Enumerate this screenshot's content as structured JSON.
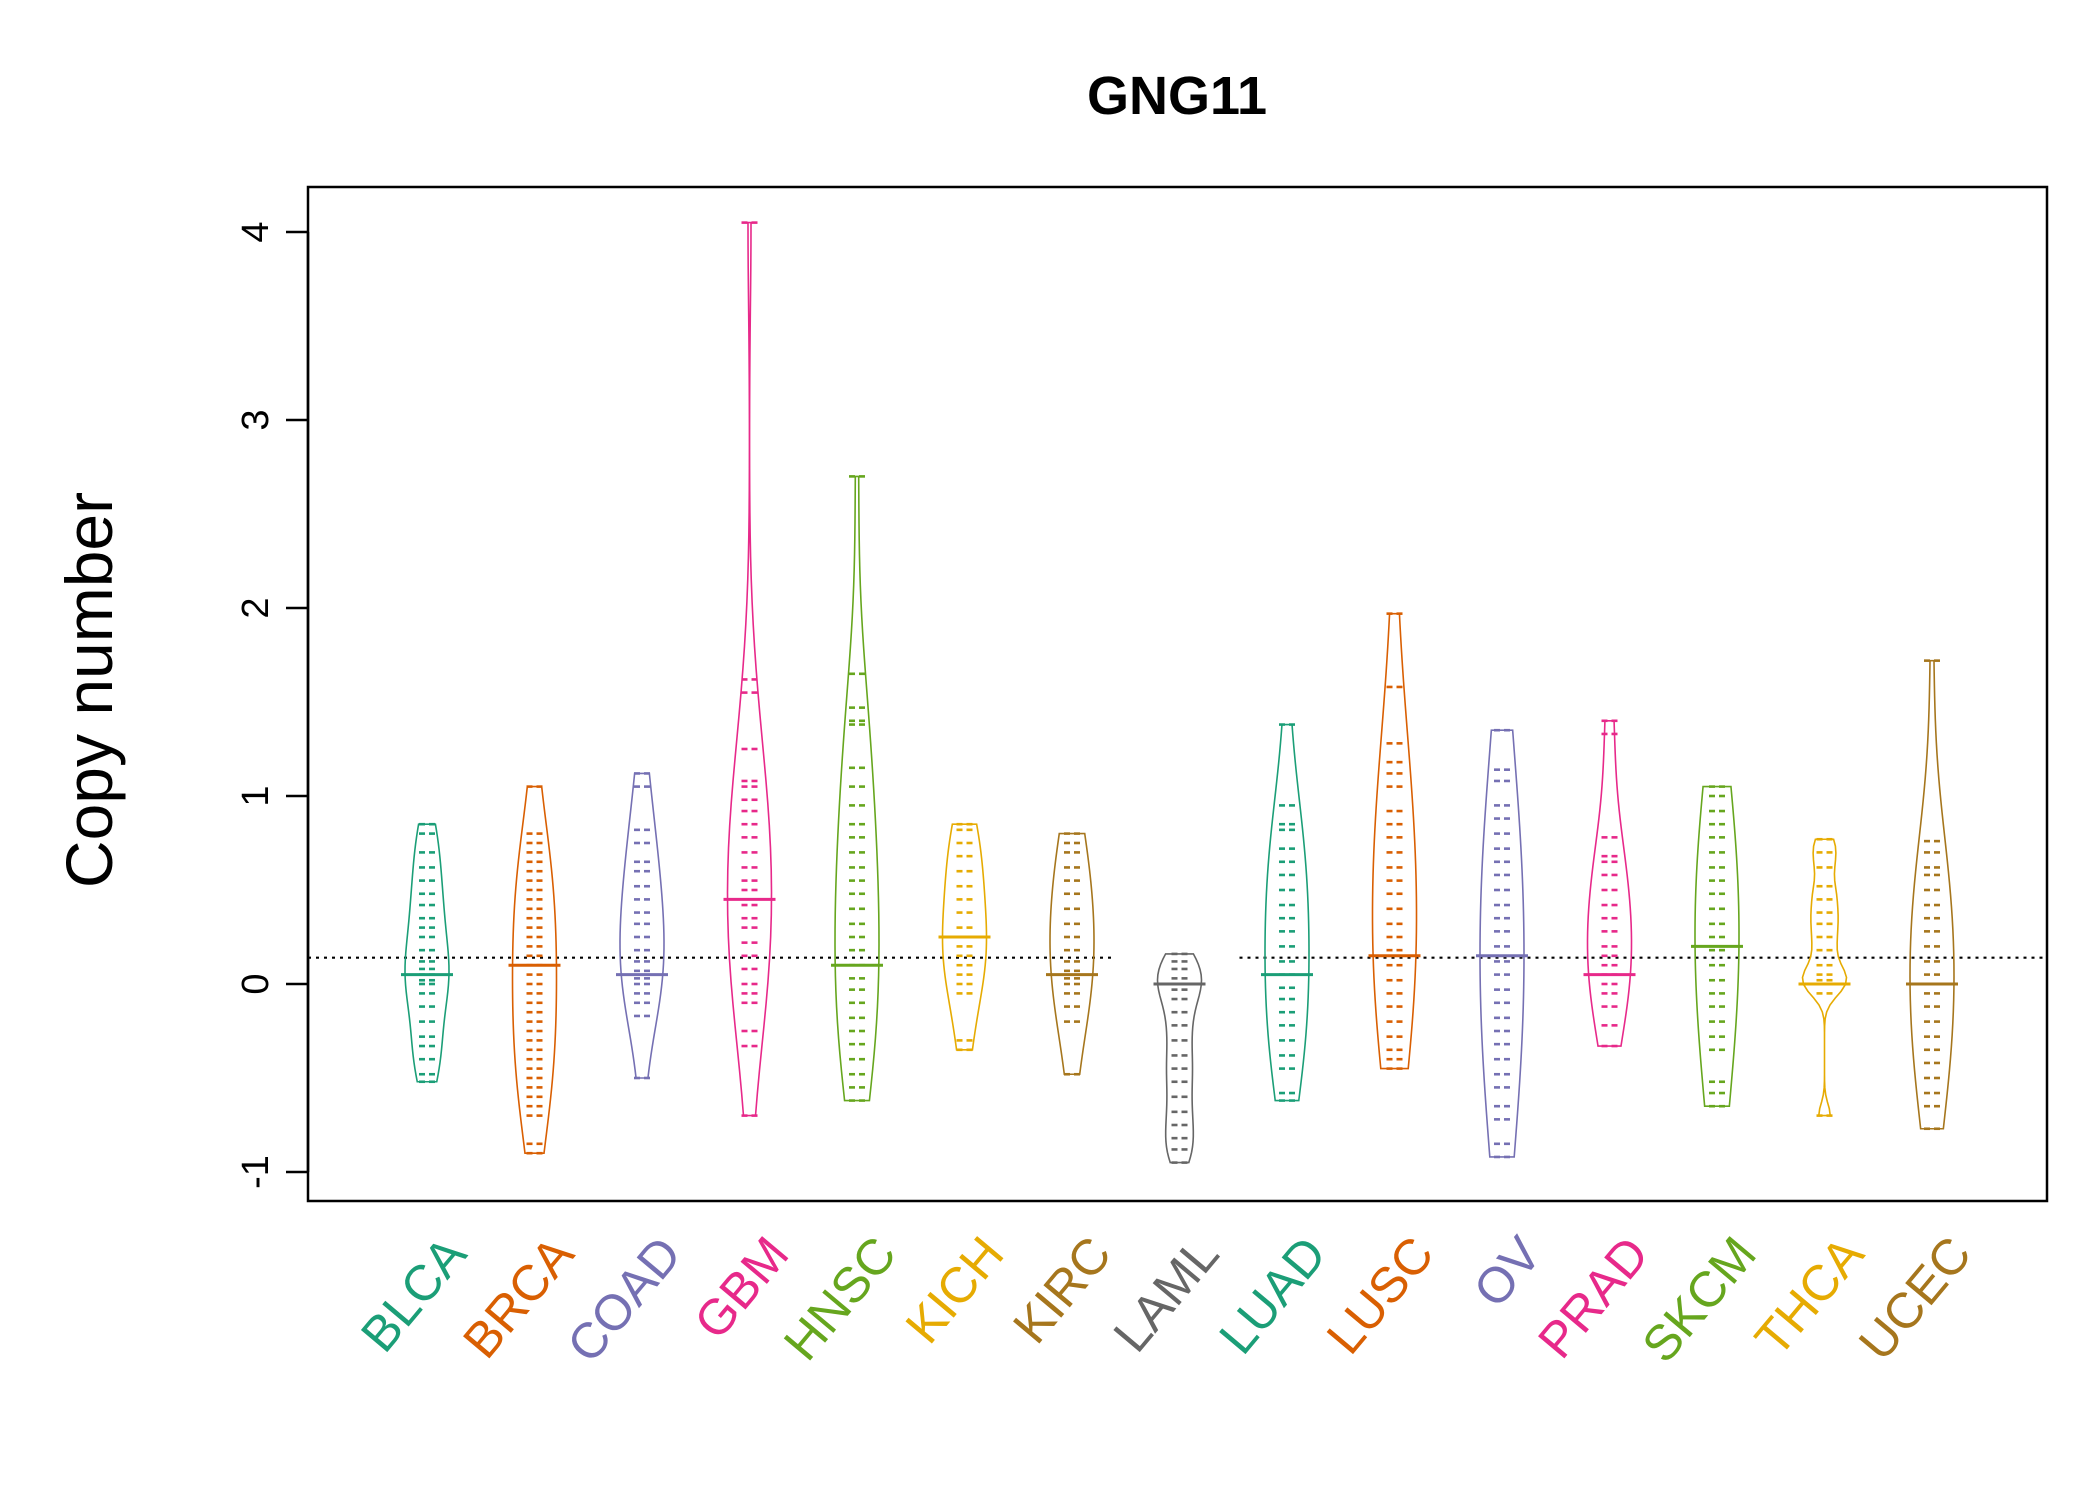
{
  "chart_data": {
    "type": "beanplot",
    "title": "GNG11",
    "xlabel": "",
    "ylabel": "Copy number",
    "ylim": [
      -1,
      4
    ],
    "yticks": [
      "-1",
      "0",
      "1",
      "2",
      "3",
      "4"
    ],
    "reference_line": 0.14,
    "categories": [
      {
        "name": "BLCA",
        "color": "#1B9E77",
        "median": 0.05,
        "core": [
          -0.05,
          0.35
        ],
        "values": [
          -0.52,
          -0.48,
          -0.4,
          -0.33,
          -0.28,
          -0.2,
          -0.12,
          -0.05,
          0.0,
          0.02,
          0.05,
          0.08,
          0.12,
          0.18,
          0.25,
          0.3,
          0.35,
          0.42,
          0.48,
          0.55,
          0.62,
          0.7,
          0.8,
          0.85
        ]
      },
      {
        "name": "BRCA",
        "color": "#D95F02",
        "median": 0.1,
        "core": [
          -0.3,
          0.55
        ],
        "values": [
          -0.9,
          -0.85,
          -0.7,
          -0.65,
          -0.6,
          -0.55,
          -0.5,
          -0.45,
          -0.4,
          -0.35,
          -0.3,
          -0.25,
          -0.2,
          -0.15,
          -0.1,
          -0.05,
          0.0,
          0.05,
          0.1,
          0.15,
          0.2,
          0.25,
          0.3,
          0.35,
          0.4,
          0.45,
          0.5,
          0.55,
          0.6,
          0.65,
          0.7,
          0.75,
          0.8,
          1.05
        ]
      },
      {
        "name": "COAD",
        "color": "#7570B3",
        "median": 0.05,
        "core": [
          -0.1,
          0.6
        ],
        "values": [
          -0.5,
          -0.17,
          -0.1,
          -0.05,
          0.0,
          0.03,
          0.07,
          0.12,
          0.18,
          0.25,
          0.32,
          0.38,
          0.45,
          0.52,
          0.6,
          0.65,
          0.75,
          0.82,
          1.05,
          1.12
        ]
      },
      {
        "name": "GBM",
        "color": "#E7298A",
        "median": 0.45,
        "core": [
          -0.05,
          1.0
        ],
        "values": [
          -0.7,
          -0.33,
          -0.25,
          -0.1,
          -0.05,
          0.0,
          0.08,
          0.15,
          0.22,
          0.3,
          0.35,
          0.42,
          0.5,
          0.55,
          0.62,
          0.7,
          0.78,
          0.85,
          0.92,
          0.98,
          1.05,
          1.08,
          1.25,
          1.55,
          1.62,
          4.05
        ]
      },
      {
        "name": "HNSC",
        "color": "#66A61E",
        "median": 0.1,
        "core": [
          -0.3,
          0.8
        ],
        "values": [
          -0.62,
          -0.55,
          -0.48,
          -0.4,
          -0.32,
          -0.25,
          -0.18,
          -0.1,
          -0.03,
          0.03,
          0.1,
          0.18,
          0.25,
          0.32,
          0.4,
          0.48,
          0.55,
          0.62,
          0.7,
          0.78,
          0.85,
          0.95,
          1.05,
          1.15,
          1.38,
          1.4,
          1.47,
          1.65,
          2.7
        ]
      },
      {
        "name": "KICH",
        "color": "#E6AB02",
        "median": 0.25,
        "core": [
          0.0,
          0.55
        ],
        "values": [
          -0.35,
          -0.3,
          -0.05,
          0.0,
          0.05,
          0.1,
          0.15,
          0.2,
          0.25,
          0.3,
          0.38,
          0.45,
          0.52,
          0.6,
          0.68,
          0.75,
          0.82,
          0.85
        ]
      },
      {
        "name": "KIRC",
        "color": "#A6761D",
        "median": 0.05,
        "core": [
          -0.05,
          0.75
        ],
        "values": [
          -0.48,
          -0.2,
          -0.12,
          -0.05,
          0.0,
          0.03,
          0.07,
          0.12,
          0.18,
          0.25,
          0.32,
          0.4,
          0.48,
          0.55,
          0.62,
          0.7,
          0.75,
          0.8
        ]
      },
      {
        "name": "LAML",
        "color": "#666666",
        "median": 0.0,
        "core": [
          -0.1,
          0.12
        ],
        "values": [
          -0.95,
          -0.88,
          -0.82,
          -0.75,
          -0.68,
          -0.6,
          -0.52,
          -0.45,
          -0.38,
          -0.3,
          -0.22,
          -0.15,
          -0.08,
          -0.03,
          0.0,
          0.03,
          0.08,
          0.12,
          0.16
        ]
      },
      {
        "name": "LUAD",
        "color": "#1B9E77",
        "median": 0.05,
        "core": [
          -0.25,
          0.65
        ],
        "values": [
          -0.62,
          -0.58,
          -0.45,
          -0.38,
          -0.3,
          -0.22,
          -0.15,
          -0.08,
          -0.02,
          0.05,
          0.12,
          0.2,
          0.28,
          0.35,
          0.42,
          0.5,
          0.58,
          0.65,
          0.72,
          0.82,
          0.85,
          0.95,
          1.38
        ]
      },
      {
        "name": "LUSC",
        "color": "#D95F02",
        "median": 0.15,
        "core": [
          -0.4,
          0.9
        ],
        "values": [
          -0.45,
          -0.4,
          -0.35,
          -0.28,
          -0.2,
          -0.12,
          -0.05,
          0.02,
          0.1,
          0.18,
          0.25,
          0.32,
          0.4,
          0.48,
          0.55,
          0.62,
          0.7,
          0.78,
          0.85,
          0.92,
          1.05,
          1.12,
          1.18,
          1.28,
          1.58,
          1.97
        ]
      },
      {
        "name": "OV",
        "color": "#7570B3",
        "median": 0.15,
        "core": [
          -0.7,
          0.9
        ],
        "values": [
          -0.92,
          -0.85,
          -0.72,
          -0.65,
          -0.55,
          -0.48,
          -0.4,
          -0.32,
          -0.25,
          -0.18,
          -0.1,
          -0.03,
          0.05,
          0.12,
          0.2,
          0.28,
          0.35,
          0.42,
          0.5,
          0.58,
          0.65,
          0.72,
          0.8,
          0.88,
          0.95,
          1.08,
          1.14,
          1.35
        ]
      },
      {
        "name": "PRAD",
        "color": "#E7298A",
        "median": 0.05,
        "core": [
          -0.1,
          0.68
        ],
        "values": [
          -0.33,
          -0.22,
          -0.12,
          -0.05,
          0.0,
          0.05,
          0.1,
          0.15,
          0.2,
          0.28,
          0.35,
          0.42,
          0.5,
          0.58,
          0.65,
          0.68,
          0.78,
          1.33,
          1.4
        ]
      },
      {
        "name": "SKCM",
        "color": "#66A61E",
        "median": 0.2,
        "core": [
          -0.35,
          1.05
        ],
        "values": [
          -0.65,
          -0.58,
          -0.52,
          -0.35,
          -0.28,
          -0.2,
          -0.12,
          -0.05,
          0.02,
          0.1,
          0.18,
          0.25,
          0.32,
          0.4,
          0.48,
          0.55,
          0.62,
          0.7,
          0.78,
          0.85,
          0.92,
          1.0,
          1.05
        ]
      },
      {
        "name": "THCA",
        "color": "#E6AB02",
        "median": 0.0,
        "core": [
          -0.05,
          0.1
        ],
        "values": [
          -0.7,
          -0.05,
          0.0,
          0.02,
          0.05,
          0.1,
          0.18,
          0.25,
          0.32,
          0.38,
          0.45,
          0.52,
          0.62,
          0.7,
          0.77
        ]
      },
      {
        "name": "UCEC",
        "color": "#A6761D",
        "median": 0.0,
        "core": [
          -0.45,
          0.62
        ],
        "values": [
          -0.77,
          -0.65,
          -0.58,
          -0.5,
          -0.42,
          -0.35,
          -0.28,
          -0.2,
          -0.12,
          -0.05,
          0.0,
          0.05,
          0.12,
          0.2,
          0.28,
          0.35,
          0.42,
          0.5,
          0.58,
          0.62,
          0.7,
          0.76,
          1.72
        ]
      }
    ]
  }
}
